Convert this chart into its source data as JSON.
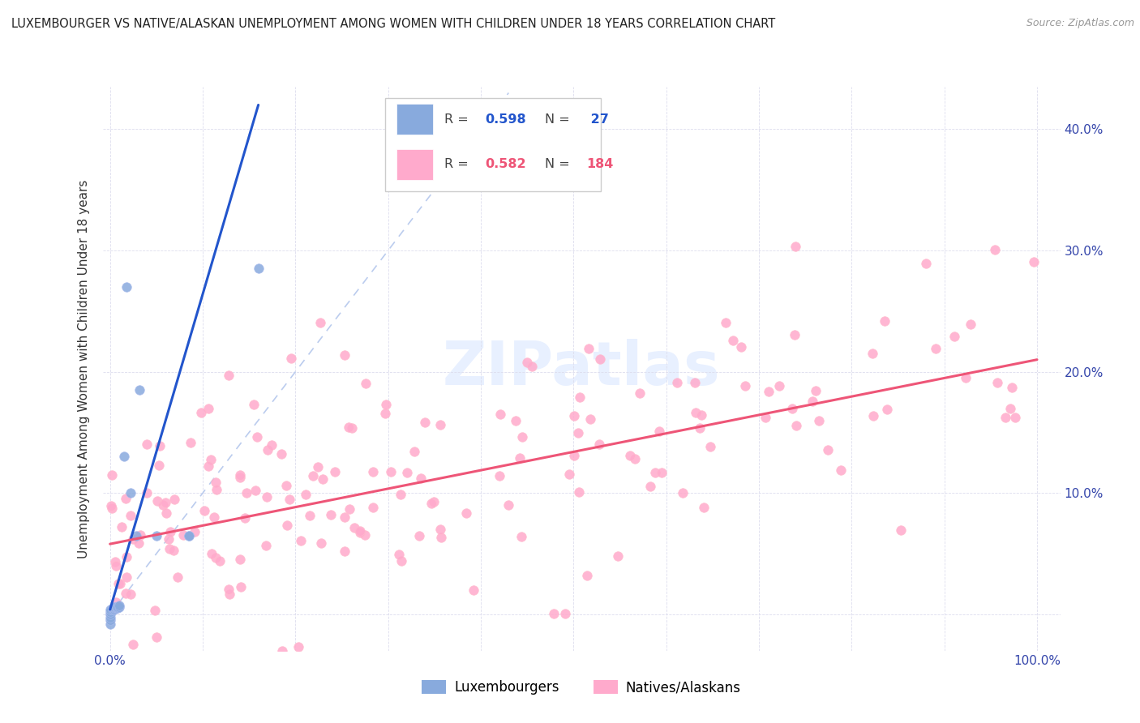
{
  "title": "LUXEMBOURGER VS NATIVE/ALASKAN UNEMPLOYMENT AMONG WOMEN WITH CHILDREN UNDER 18 YEARS CORRELATION CHART",
  "source": "Source: ZipAtlas.com",
  "ylabel": "Unemployment Among Women with Children Under 18 years",
  "blue_color": "#88AADD",
  "pink_color": "#FFAACC",
  "blue_line_color": "#2255CC",
  "pink_line_color": "#EE5577",
  "ref_line_color": "#BBCCEE",
  "watermark_color": "#E8F0FF",
  "title_color": "#222222",
  "tick_color": "#3344AA",
  "grid_color": "#DDDDEE",
  "legend_edge_color": "#CCCCCC",
  "r1": "0.598",
  "n1": "27",
  "r2": "0.582",
  "n2": "184",
  "blue_scatter_x": [
    0.0,
    0.0,
    0.0,
    0.0,
    0.0,
    0.0,
    0.003,
    0.003,
    0.004,
    0.005,
    0.005,
    0.005,
    0.006,
    0.007,
    0.008,
    0.008,
    0.01,
    0.01,
    0.015,
    0.018,
    0.022,
    0.028,
    0.032,
    0.05,
    0.085,
    0.085,
    0.16
  ],
  "blue_scatter_y": [
    -0.008,
    -0.005,
    -0.003,
    0.0,
    0.002,
    0.004,
    0.004,
    0.005,
    0.005,
    0.004,
    0.005,
    0.006,
    0.006,
    0.005,
    0.005,
    0.006,
    0.006,
    0.007,
    0.13,
    0.27,
    0.1,
    0.065,
    0.185,
    0.065,
    0.065,
    0.065,
    0.285
  ]
}
